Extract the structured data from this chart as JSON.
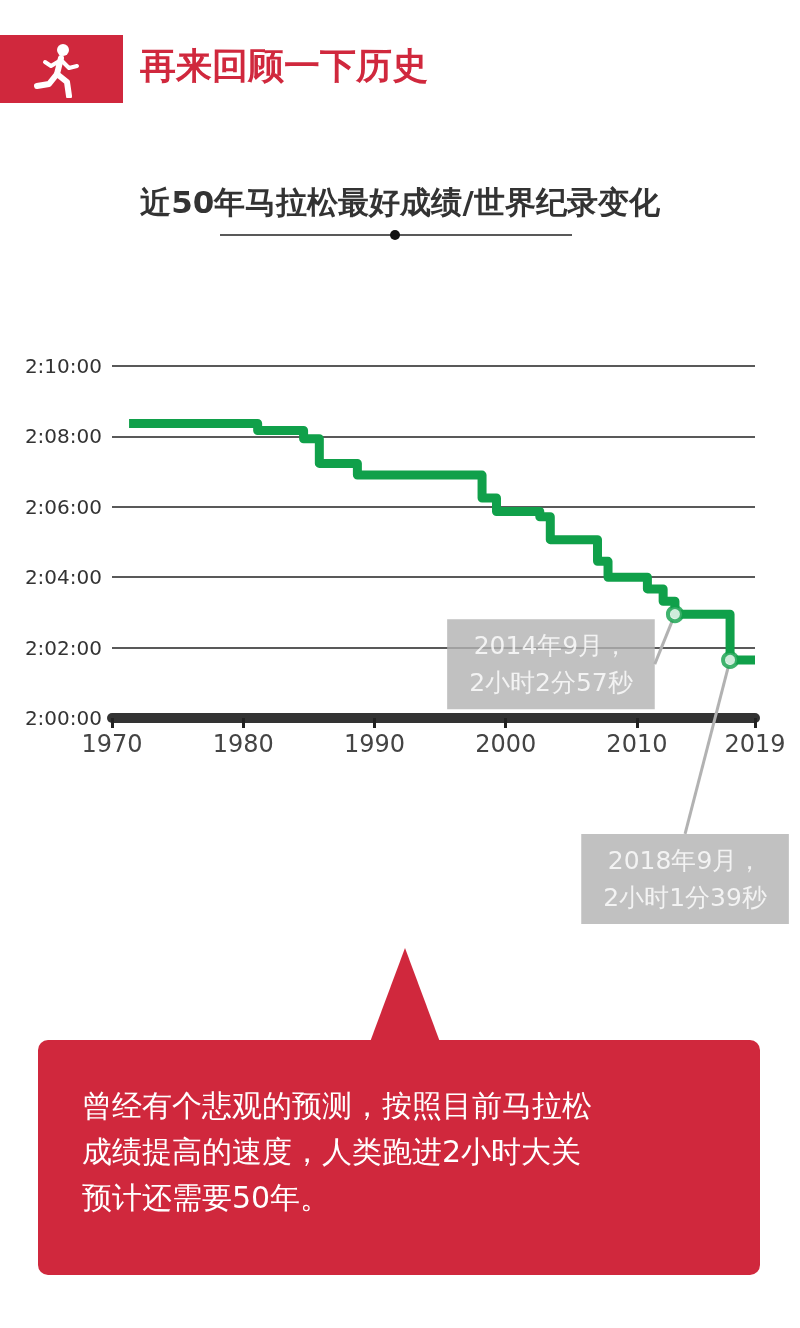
{
  "chart_data": {
    "type": "step",
    "title": "近50年马拉松最好成绩/世界纪录变化",
    "x": [
      1971.3,
      1981.1,
      1984.6,
      1985.8,
      1988.7,
      1998.2,
      1999.3,
      2002.6,
      2003.4,
      2007.0,
      2007.8,
      2010.8,
      2012.0,
      2012.9,
      2017.1,
      2019
    ],
    "series": [
      {
        "color": "#10a04a",
        "values": [
          7702,
          7690,
          7676,
          7634,
          7614,
          7575,
          7552,
          7543,
          7504,
          7467,
          7440,
          7420,
          7399,
          7377,
          7299,
          7299
        ]
      }
    ],
    "xlim": [
      1970,
      2019
    ],
    "xticks": [
      1970,
      1980,
      1990,
      2000,
      2010,
      2019
    ],
    "ylim": [
      7200,
      7800
    ],
    "yticks": [
      {
        "value": 7200,
        "label": "2:00:00"
      },
      {
        "value": 7320,
        "label": "2:02:00"
      },
      {
        "value": 7440,
        "label": "2:04:00"
      },
      {
        "value": 7560,
        "label": "2:06:00"
      },
      {
        "value": 7680,
        "label": "2:08:00"
      },
      {
        "value": 7800,
        "label": "2:10:00"
      }
    ],
    "grid": "y",
    "marker": "none",
    "line_style": "solid",
    "annotations": [
      "再来回顾一下历史",
      {
        "text": "2014年9月，\n2小时2分57秒",
        "x": 2012.9,
        "y": 7377
      },
      {
        "text": "2018年9月，\n2小时1分39秒",
        "x": 2017.1,
        "y": 7299
      },
      "曾经有个悲观的预测，按照目前马拉松成绩提高的速度，人类跑进2小时大关预计还需要50年。"
    ]
  }
}
